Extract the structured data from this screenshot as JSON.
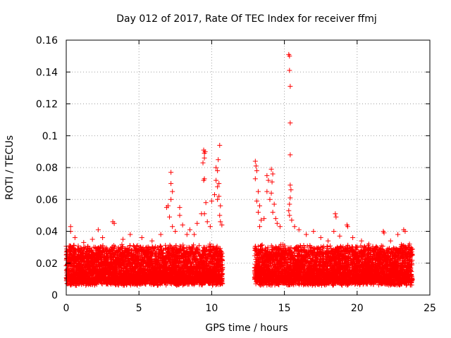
{
  "chart_data": {
    "type": "scatter",
    "title": "Day 012 of 2017, Rate Of TEC Index for receiver ffmj",
    "xlabel": "GPS time / hours",
    "ylabel": "ROTI / TECUs",
    "xlim": [
      0,
      25
    ],
    "ylim": [
      0,
      0.16
    ],
    "grid": true,
    "x_ticks": [
      0,
      5,
      10,
      15,
      20,
      25
    ],
    "x_tick_labels": [
      "0",
      "5",
      "10",
      "15",
      "20",
      "25"
    ],
    "y_ticks": [
      0,
      0.02,
      0.04,
      0.06,
      0.08,
      0.1,
      0.12,
      0.14,
      0.16
    ],
    "y_tick_labels": [
      "0",
      "0.02",
      "0.04",
      "0.06",
      "0.08",
      "0.1",
      "0.12",
      "0.14",
      "0.16"
    ],
    "marker": "+",
    "color": "#ff0000",
    "series": [
      {
        "name": "ROTI",
        "segments": [
          {
            "x_start": 0.0,
            "x_end": 10.75,
            "baseline": 0.008,
            "band": 0.022
          },
          {
            "x_start": 12.95,
            "x_end": 23.8,
            "baseline": 0.008,
            "band": 0.022
          }
        ],
        "points": [
          {
            "x": 0.3,
            "y": 0.043
          },
          {
            "x": 0.3,
            "y": 0.04
          },
          {
            "x": 0.6,
            "y": 0.036
          },
          {
            "x": 1.2,
            "y": 0.033
          },
          {
            "x": 1.8,
            "y": 0.035
          },
          {
            "x": 2.2,
            "y": 0.041
          },
          {
            "x": 2.5,
            "y": 0.036
          },
          {
            "x": 3.2,
            "y": 0.046
          },
          {
            "x": 3.3,
            "y": 0.045
          },
          {
            "x": 3.9,
            "y": 0.035
          },
          {
            "x": 4.4,
            "y": 0.038
          },
          {
            "x": 5.2,
            "y": 0.036
          },
          {
            "x": 5.9,
            "y": 0.034
          },
          {
            "x": 6.5,
            "y": 0.038
          },
          {
            "x": 6.9,
            "y": 0.055
          },
          {
            "x": 7.0,
            "y": 0.056
          },
          {
            "x": 7.2,
            "y": 0.077
          },
          {
            "x": 7.2,
            "y": 0.07
          },
          {
            "x": 7.3,
            "y": 0.065
          },
          {
            "x": 7.2,
            "y": 0.06
          },
          {
            "x": 7.1,
            "y": 0.049
          },
          {
            "x": 7.3,
            "y": 0.043
          },
          {
            "x": 7.5,
            "y": 0.04
          },
          {
            "x": 7.8,
            "y": 0.055
          },
          {
            "x": 7.8,
            "y": 0.05
          },
          {
            "x": 8.0,
            "y": 0.044
          },
          {
            "x": 8.3,
            "y": 0.038
          },
          {
            "x": 8.5,
            "y": 0.041
          },
          {
            "x": 8.8,
            "y": 0.038
          },
          {
            "x": 9.0,
            "y": 0.045
          },
          {
            "x": 9.3,
            "y": 0.051
          },
          {
            "x": 9.45,
            "y": 0.091
          },
          {
            "x": 9.5,
            "y": 0.089
          },
          {
            "x": 9.5,
            "y": 0.086
          },
          {
            "x": 9.55,
            "y": 0.09
          },
          {
            "x": 9.4,
            "y": 0.083
          },
          {
            "x": 9.5,
            "y": 0.073
          },
          {
            "x": 9.45,
            "y": 0.072
          },
          {
            "x": 9.6,
            "y": 0.058
          },
          {
            "x": 9.5,
            "y": 0.051
          },
          {
            "x": 9.7,
            "y": 0.046
          },
          {
            "x": 9.9,
            "y": 0.043
          },
          {
            "x": 10.0,
            "y": 0.059
          },
          {
            "x": 10.2,
            "y": 0.063
          },
          {
            "x": 10.3,
            "y": 0.08
          },
          {
            "x": 10.4,
            "y": 0.078
          },
          {
            "x": 10.3,
            "y": 0.072
          },
          {
            "x": 10.5,
            "y": 0.07
          },
          {
            "x": 10.4,
            "y": 0.068
          },
          {
            "x": 10.55,
            "y": 0.094
          },
          {
            "x": 10.45,
            "y": 0.085
          },
          {
            "x": 10.5,
            "y": 0.062
          },
          {
            "x": 10.6,
            "y": 0.056
          },
          {
            "x": 10.55,
            "y": 0.05
          },
          {
            "x": 10.6,
            "y": 0.046
          },
          {
            "x": 10.4,
            "y": 0.06
          },
          {
            "x": 10.7,
            "y": 0.044
          },
          {
            "x": 13.0,
            "y": 0.084
          },
          {
            "x": 13.05,
            "y": 0.081
          },
          {
            "x": 13.1,
            "y": 0.078
          },
          {
            "x": 13.0,
            "y": 0.073
          },
          {
            "x": 13.2,
            "y": 0.065
          },
          {
            "x": 13.1,
            "y": 0.059
          },
          {
            "x": 13.3,
            "y": 0.056
          },
          {
            "x": 13.2,
            "y": 0.052
          },
          {
            "x": 13.4,
            "y": 0.047
          },
          {
            "x": 13.3,
            "y": 0.043
          },
          {
            "x": 13.6,
            "y": 0.048
          },
          {
            "x": 13.8,
            "y": 0.075
          },
          {
            "x": 13.9,
            "y": 0.072
          },
          {
            "x": 13.8,
            "y": 0.065
          },
          {
            "x": 14.0,
            "y": 0.06
          },
          {
            "x": 14.1,
            "y": 0.079
          },
          {
            "x": 14.2,
            "y": 0.076
          },
          {
            "x": 14.15,
            "y": 0.071
          },
          {
            "x": 14.1,
            "y": 0.064
          },
          {
            "x": 14.3,
            "y": 0.057
          },
          {
            "x": 14.2,
            "y": 0.052
          },
          {
            "x": 14.4,
            "y": 0.048
          },
          {
            "x": 14.5,
            "y": 0.045
          },
          {
            "x": 14.7,
            "y": 0.043
          },
          {
            "x": 15.3,
            "y": 0.151
          },
          {
            "x": 15.35,
            "y": 0.15
          },
          {
            "x": 15.35,
            "y": 0.141
          },
          {
            "x": 15.4,
            "y": 0.131
          },
          {
            "x": 15.4,
            "y": 0.108
          },
          {
            "x": 15.4,
            "y": 0.088
          },
          {
            "x": 15.4,
            "y": 0.069
          },
          {
            "x": 15.45,
            "y": 0.066
          },
          {
            "x": 15.4,
            "y": 0.061
          },
          {
            "x": 15.35,
            "y": 0.057
          },
          {
            "x": 15.3,
            "y": 0.053
          },
          {
            "x": 15.35,
            "y": 0.05
          },
          {
            "x": 15.5,
            "y": 0.047
          },
          {
            "x": 15.7,
            "y": 0.043
          },
          {
            "x": 16.0,
            "y": 0.041
          },
          {
            "x": 16.5,
            "y": 0.038
          },
          {
            "x": 17.0,
            "y": 0.04
          },
          {
            "x": 17.5,
            "y": 0.036
          },
          {
            "x": 18.0,
            "y": 0.034
          },
          {
            "x": 18.5,
            "y": 0.051
          },
          {
            "x": 18.55,
            "y": 0.049
          },
          {
            "x": 18.4,
            "y": 0.04
          },
          {
            "x": 18.8,
            "y": 0.037
          },
          {
            "x": 19.3,
            "y": 0.044
          },
          {
            "x": 19.35,
            "y": 0.043
          },
          {
            "x": 19.7,
            "y": 0.036
          },
          {
            "x": 20.3,
            "y": 0.034
          },
          {
            "x": 20.8,
            "y": 0.032
          },
          {
            "x": 21.3,
            "y": 0.03
          },
          {
            "x": 21.8,
            "y": 0.04
          },
          {
            "x": 21.85,
            "y": 0.039
          },
          {
            "x": 22.3,
            "y": 0.034
          },
          {
            "x": 22.8,
            "y": 0.038
          },
          {
            "x": 23.2,
            "y": 0.041
          },
          {
            "x": 23.3,
            "y": 0.04
          },
          {
            "x": 23.6,
            "y": 0.032
          }
        ]
      }
    ]
  }
}
